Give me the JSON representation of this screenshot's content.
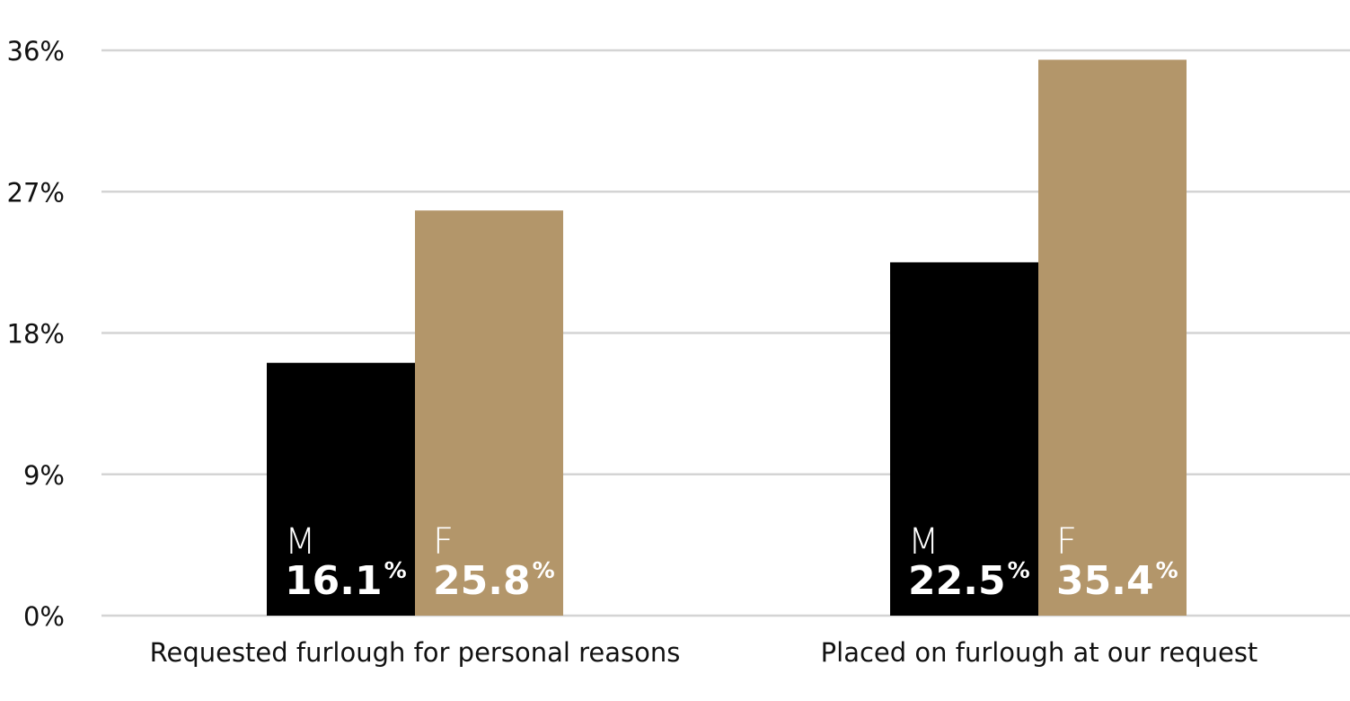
{
  "chart_data": {
    "type": "bar",
    "categories": [
      "Requested furlough for personal reasons",
      "Placed on furlough at our request"
    ],
    "series": [
      {
        "letter": "M",
        "values": [
          16.1,
          22.5
        ],
        "color": "#000000"
      },
      {
        "letter": "F",
        "values": [
          25.8,
          35.4
        ],
        "color": "#b3966a"
      }
    ],
    "ylim": [
      0,
      36
    ],
    "yticks": [
      0,
      9,
      18,
      27,
      36
    ],
    "ytick_labels": [
      "0%",
      "9%",
      "18%",
      "27%",
      "36%"
    ],
    "value_labels": [
      [
        "16.1",
        "22.5"
      ],
      [
        "25.8",
        "35.4"
      ]
    ],
    "value_suffix": "%",
    "grid": true,
    "gridline_color": "#d4d4d4"
  }
}
